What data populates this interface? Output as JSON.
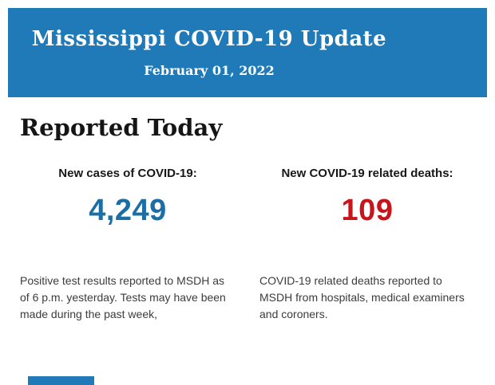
{
  "header": {
    "title": "Mississippi COVID-19 Update",
    "date": "February 01, 2022",
    "bg_color": "#1F7AB7",
    "text_color": "#FFFFFF"
  },
  "section": {
    "title": "Reported Today"
  },
  "stats": [
    {
      "label": "New cases of COVID-19:",
      "value": "4,249",
      "value_color": "#1C6FA4",
      "description": "Positive test results reported to MSDH as of 6 p.m. yesterday. Tests may have been made during the past week,"
    },
    {
      "label": "New COVID-19 related deaths:",
      "value": "109",
      "value_color": "#C8141A",
      "description": "COVID-19 related deaths reported to MSDH from hospitals, medical examiners and coroners."
    }
  ],
  "footer": {
    "next_section_color": "#1F7AB7"
  }
}
